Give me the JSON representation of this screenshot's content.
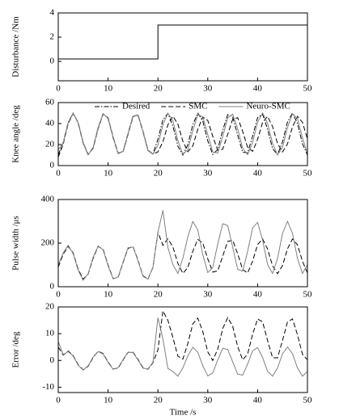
{
  "chart_data": [
    {
      "type": "line",
      "ylabel": "Disturbance /Nm",
      "xlim": [
        0,
        50
      ],
      "ylim": [
        -1.6,
        4
      ],
      "xticks": [
        0,
        10,
        20,
        30,
        40,
        50
      ],
      "yticks": [
        0,
        2,
        4
      ],
      "x": [
        0,
        20,
        20,
        50
      ],
      "series": [
        {
          "color": "#000000",
          "style": "solid",
          "values": [
            0.2,
            0.2,
            3,
            3
          ]
        }
      ]
    },
    {
      "type": "line",
      "ylabel": "Knee angle /deg",
      "xlim": [
        0,
        50
      ],
      "ylim": [
        0,
        60
      ],
      "xticks": [
        0,
        10,
        20,
        30,
        40,
        50
      ],
      "yticks": [
        0,
        20,
        40,
        60
      ],
      "legend": "top",
      "x": [
        0,
        1,
        2,
        3,
        4,
        5,
        6,
        7,
        8,
        9,
        10,
        11,
        12,
        13,
        14,
        15,
        16,
        17,
        18,
        19,
        20,
        21,
        22,
        23,
        24,
        25,
        26,
        27,
        28,
        29,
        30,
        31,
        32,
        33,
        34,
        35,
        36,
        37,
        38,
        39,
        40,
        41,
        42,
        43,
        44,
        45,
        46,
        47,
        48,
        49,
        50
      ],
      "series": [
        {
          "name": "Desired",
          "color": "#000000",
          "style": "dashdot",
          "values": [
            10.3,
            22.2,
            41.3,
            50.0,
            40.3,
            21.1,
            10.1,
            17.4,
            36.2,
            49.4,
            44.7,
            26.5,
            11.5,
            13.6,
            30.7,
            47.2,
            47.9,
            32.1,
            14.4,
            11.0,
            25.1,
            43.6,
            49.7,
            37.6,
            18.6,
            10.0,
            19.8,
            39.0,
            49.9,
            42.5,
            23.6,
            10.6,
            15.4,
            33.7,
            48.5,
            46.3,
            29.1,
            12.7,
            12.2,
            28.0,
            45.7,
            48.9,
            34.8,
            16.2,
            10.4,
            22.6,
            41.6,
            50.0,
            40.0,
            20.8,
            10.1
          ]
        },
        {
          "name": "SMC",
          "color": "#000000",
          "style": "dashed",
          "values": [
            8.0,
            20.5,
            40.0,
            49.5,
            41.0,
            22.0,
            10.5,
            16.5,
            35.0,
            49.0,
            45.5,
            27.5,
            12.0,
            13.0,
            29.5,
            46.5,
            48.5,
            33.0,
            15.0,
            10.8,
            13.1,
            22.6,
            38.9,
            47.0,
            39.5,
            23.2,
            13.2,
            18.7,
            34.5,
            46.2,
            43.0,
            27.9,
            14.6,
            15.6,
            29.7,
            44.2,
            45.6,
            32.7,
            17.3,
            13.6,
            25.0,
            41.0,
            46.8,
            37.2,
            21.0,
            13.0,
            20.6,
            36.9,
            46.8,
            41.2,
            25.3
          ]
        },
        {
          "name": "Neuro-SMC",
          "color": "#808080",
          "style": "solid",
          "values": [
            15.0,
            21.5,
            40.8,
            49.8,
            40.8,
            21.6,
            10.2,
            17.0,
            35.8,
            49.3,
            45.0,
            27.0,
            11.8,
            13.3,
            30.2,
            47.0,
            48.1,
            32.6,
            14.7,
            10.9,
            19.6,
            38.7,
            49.9,
            42.7,
            23.9,
            10.7,
            15.2,
            33.3,
            48.4,
            46.5,
            29.5,
            12.9,
            12.0,
            27.7,
            45.5,
            49.0,
            35.1,
            16.5,
            10.3,
            22.2,
            41.3,
            50.0,
            40.3,
            21.1,
            10.1,
            17.4,
            36.3,
            49.4,
            44.7,
            26.5,
            11.5
          ]
        }
      ]
    },
    {
      "type": "line",
      "ylabel": "Pulse width /μs",
      "xlim": [
        0,
        50
      ],
      "ylim": [
        0,
        400
      ],
      "xticks": [
        0,
        10,
        20,
        30,
        40,
        50
      ],
      "yticks": [
        0,
        200,
        400
      ],
      "x": [
        0,
        1,
        2,
        3,
        4,
        5,
        6,
        7,
        8,
        9,
        10,
        11,
        12,
        13,
        14,
        15,
        16,
        17,
        18,
        19,
        20,
        21,
        22,
        23,
        24,
        25,
        26,
        27,
        28,
        29,
        30,
        31,
        32,
        33,
        34,
        35,
        36,
        37,
        38,
        39,
        40,
        41,
        42,
        43,
        44,
        45,
        46,
        47,
        48,
        49,
        50
      ],
      "series": [
        {
          "color": "#000000",
          "style": "dashed",
          "values": [
            90,
            150,
            185,
            155,
            80,
            35,
            58,
            130,
            185,
            172,
            100,
            38,
            42,
            110,
            176,
            184,
            122,
            50,
            36,
            88,
            250,
            190,
            220,
            183,
            107,
            61,
            88,
            163,
            217,
            200,
            128,
            67,
            73,
            140,
            208,
            213,
            151,
            79,
            63,
            118,
            193,
            219,
            173,
            96,
            60,
            97,
            174,
            219,
            192,
            117,
            63
          ]
        },
        {
          "color": "#808080",
          "style": "solid",
          "values": [
            100,
            155,
            190,
            151,
            75,
            30,
            60,
            135,
            187,
            169,
            96,
            36,
            44,
            113,
            179,
            182,
            119,
            48,
            34,
            90,
            250,
            350,
            180,
            102,
            61,
            130,
            229,
            299,
            260,
            147,
            65,
            88,
            196,
            289,
            281,
            181,
            80,
            71,
            162,
            270,
            295,
            214,
            102,
            61,
            130,
            245,
            300,
            245,
            130,
            61,
            101
          ]
        }
      ]
    },
    {
      "type": "line",
      "ylabel": "Error /deg",
      "xlabel": "Time /s",
      "xlim": [
        0,
        50
      ],
      "ylim": [
        -12,
        20
      ],
      "xticks": [
        0,
        10,
        20,
        30,
        40,
        50
      ],
      "yticks": [
        -10,
        0,
        10,
        20
      ],
      "x": [
        0,
        1,
        2,
        3,
        4,
        5,
        6,
        7,
        8,
        9,
        10,
        11,
        12,
        13,
        14,
        15,
        16,
        17,
        18,
        19,
        20,
        21,
        22,
        23,
        24,
        25,
        26,
        27,
        28,
        29,
        30,
        31,
        32,
        33,
        34,
        35,
        36,
        37,
        38,
        39,
        40,
        41,
        42,
        43,
        44,
        45,
        46,
        47,
        48,
        49,
        50
      ],
      "series": [
        {
          "color": "#000000",
          "style": "dashed",
          "values": [
            5,
            2.0,
            3.5,
            1.8,
            -1.6,
            -3.5,
            -2.2,
            1.1,
            3.4,
            2.6,
            -0.6,
            -3.2,
            -2.9,
            0.1,
            3.0,
            3.1,
            0.4,
            -2.7,
            -3.3,
            -0.9,
            4,
            18.5,
            15.0,
            8.6,
            1.6,
            0.5,
            6.3,
            13.7,
            15.8,
            10.8,
            3.2,
            0.0,
            4.2,
            11.9,
            16.0,
            12.8,
            5.2,
            0.2,
            2.4,
            9.8,
            15.5,
            14.4,
            7.4,
            1.0,
            1.0,
            7.5,
            14.4,
            15.5,
            9.6,
            2.3,
            0.2
          ]
        },
        {
          "color": "#808080",
          "style": "solid",
          "values": [
            7,
            2.2,
            3.3,
            1.6,
            -1.8,
            -3.6,
            -2.0,
            1.3,
            3.3,
            2.4,
            -0.8,
            -3.3,
            -2.7,
            0.3,
            3.1,
            2.9,
            0.2,
            -2.9,
            -3.2,
            -0.7,
            16,
            8,
            -3,
            -4.1,
            -5.9,
            -2.8,
            1.7,
            4.9,
            3.1,
            -2.0,
            -5.8,
            -4.7,
            0.2,
            4.5,
            4.1,
            -0.5,
            -5.1,
            -5.5,
            -1.3,
            3.6,
            4.8,
            1.1,
            -4.1,
            -5.9,
            -2.8,
            2.5,
            5.0,
            2.5,
            -2.8,
            -5.9,
            -4.1
          ]
        }
      ]
    }
  ]
}
